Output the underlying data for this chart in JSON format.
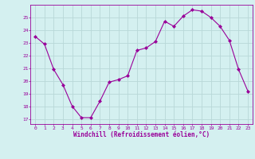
{
  "x": [
    0,
    1,
    2,
    3,
    4,
    5,
    6,
    7,
    8,
    9,
    10,
    11,
    12,
    13,
    14,
    15,
    16,
    17,
    18,
    19,
    20,
    21,
    22,
    23
  ],
  "y": [
    23.5,
    22.9,
    20.9,
    19.7,
    18.0,
    17.1,
    17.1,
    18.4,
    19.9,
    20.1,
    20.4,
    22.4,
    22.6,
    23.1,
    24.7,
    24.3,
    25.1,
    25.6,
    25.5,
    25.0,
    24.3,
    23.2,
    20.9,
    19.2
  ],
  "line_color": "#990099",
  "marker": "D",
  "marker_size": 2.0,
  "bg_color": "#d4f0f0",
  "grid_color": "#b8d8d8",
  "xlabel": "Windchill (Refroidissement éolien,°C)",
  "xlabel_color": "#990099",
  "tick_color": "#990099",
  "ylabel_values": [
    17,
    18,
    19,
    20,
    21,
    22,
    23,
    24,
    25
  ],
  "ylim": [
    16.6,
    26.0
  ],
  "xlim": [
    -0.5,
    23.5
  ],
  "figsize": [
    3.2,
    2.0
  ],
  "dpi": 100
}
